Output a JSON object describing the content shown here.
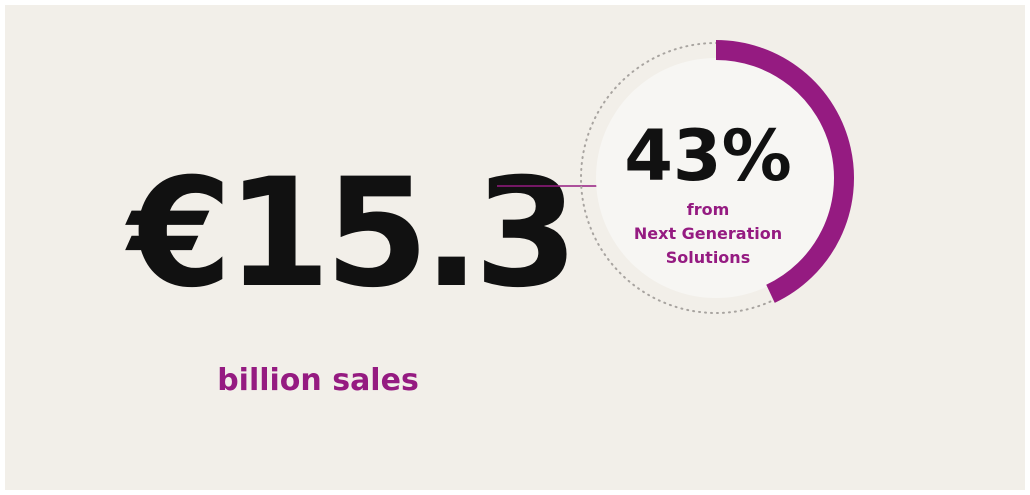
{
  "sales": {
    "amount": "€15.3",
    "label": "billion sales"
  },
  "share": {
    "value": 43,
    "value_label": "43%",
    "caption": [
      "from",
      "Next Generation",
      "Solutions"
    ],
    "color": "#951b81"
  }
}
